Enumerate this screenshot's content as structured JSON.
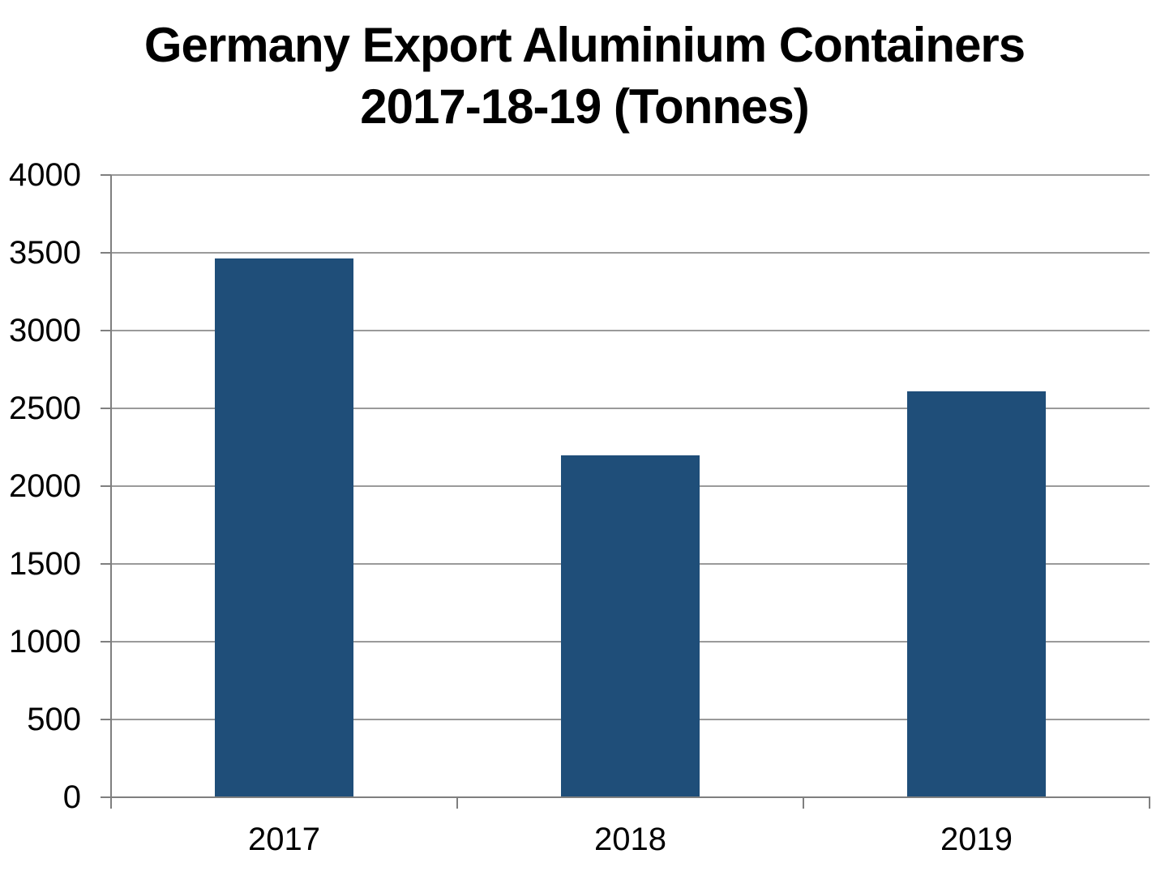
{
  "title": {
    "line1": "Germany Export Aluminium Containers",
    "line2": "2017-18-19 (Tonnes)"
  },
  "chart_data": {
    "type": "bar",
    "title": "Germany Export Aluminium Containers 2017-18-19 (Tonnes)",
    "categories": [
      "2017",
      "2018",
      "2019"
    ],
    "values": [
      3465,
      2200,
      2610
    ],
    "xlabel": "",
    "ylabel": "",
    "ylim": [
      0,
      4000
    ],
    "yticks": [
      0,
      500,
      1000,
      1500,
      2000,
      2500,
      3000,
      3500,
      4000
    ],
    "grid": true,
    "legend": false,
    "bar_color": "#1F4E79",
    "gridline_color": "#9A9A9A",
    "axis_color": "#7F7F7F",
    "text_color": "#000000",
    "background_color": "#FFFFFF"
  }
}
